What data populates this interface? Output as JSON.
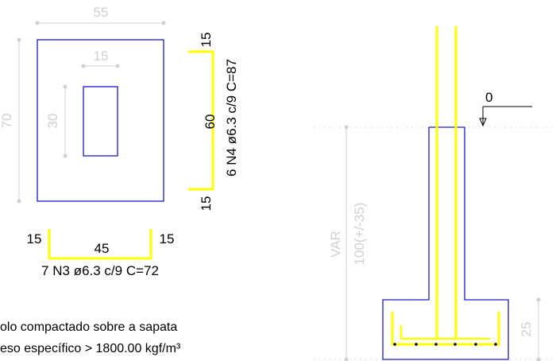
{
  "plan_view": {
    "dim_width": "55",
    "dim_height": "70",
    "dim_pillar_width": "15",
    "dim_pillar_height": "30"
  },
  "rebar_n4": {
    "top_hook": "15",
    "length": "60",
    "bottom_hook": "15",
    "spec": "6 N4 ø6.3 c/9  C=87"
  },
  "rebar_n3": {
    "left_hook": "15",
    "length": "45",
    "right_hook": "15",
    "spec": "7 N3 ø6.3 c/9  C=72"
  },
  "notes": {
    "line1": "olo compactado sobre a sapata",
    "line2": "eso específico > 1800.00 kgf/m³"
  },
  "section_view": {
    "level": "0",
    "var_label": "VAR",
    "depth_label": "100(+/-35)",
    "footing_height": "25"
  },
  "colors": {
    "outline": "#1a1acc",
    "rebar": "#ffff00",
    "dimension": "#d0d0d0",
    "text": "#000000"
  }
}
